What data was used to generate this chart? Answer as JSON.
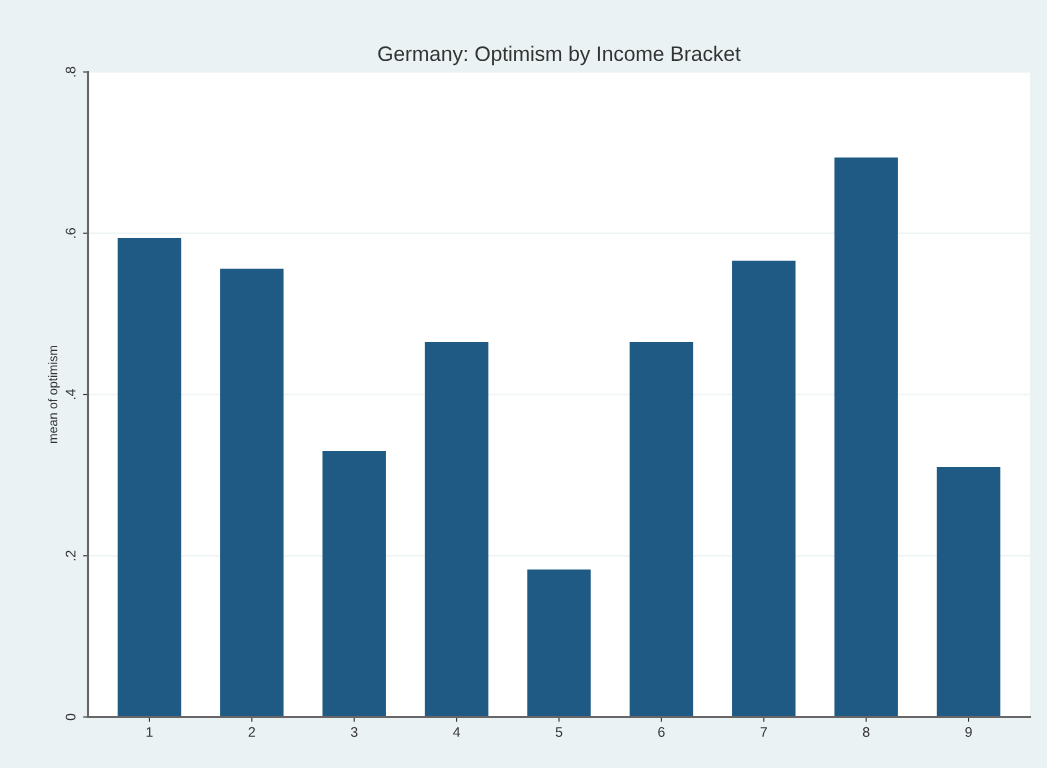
{
  "chart_data": {
    "type": "bar",
    "title": "Germany: Optimism by Income Bracket",
    "ylabel": "mean of optimism",
    "categories": [
      "1",
      "2",
      "3",
      "4",
      "5",
      "6",
      "7",
      "8",
      "9"
    ],
    "values": [
      0.594,
      0.556,
      0.33,
      0.465,
      0.183,
      0.465,
      0.566,
      0.694,
      0.31
    ],
    "color": "#1f5a84",
    "ylim": [
      0,
      0.8
    ],
    "yticks": [
      0,
      {
        "value": 0.2,
        "label": ".2"
      },
      {
        "value": 0.4,
        "label": ".4"
      },
      {
        "value": 0.6,
        "label": ".6"
      },
      {
        "value": 0.8,
        "label": ".8"
      }
    ],
    "grid": "y"
  }
}
